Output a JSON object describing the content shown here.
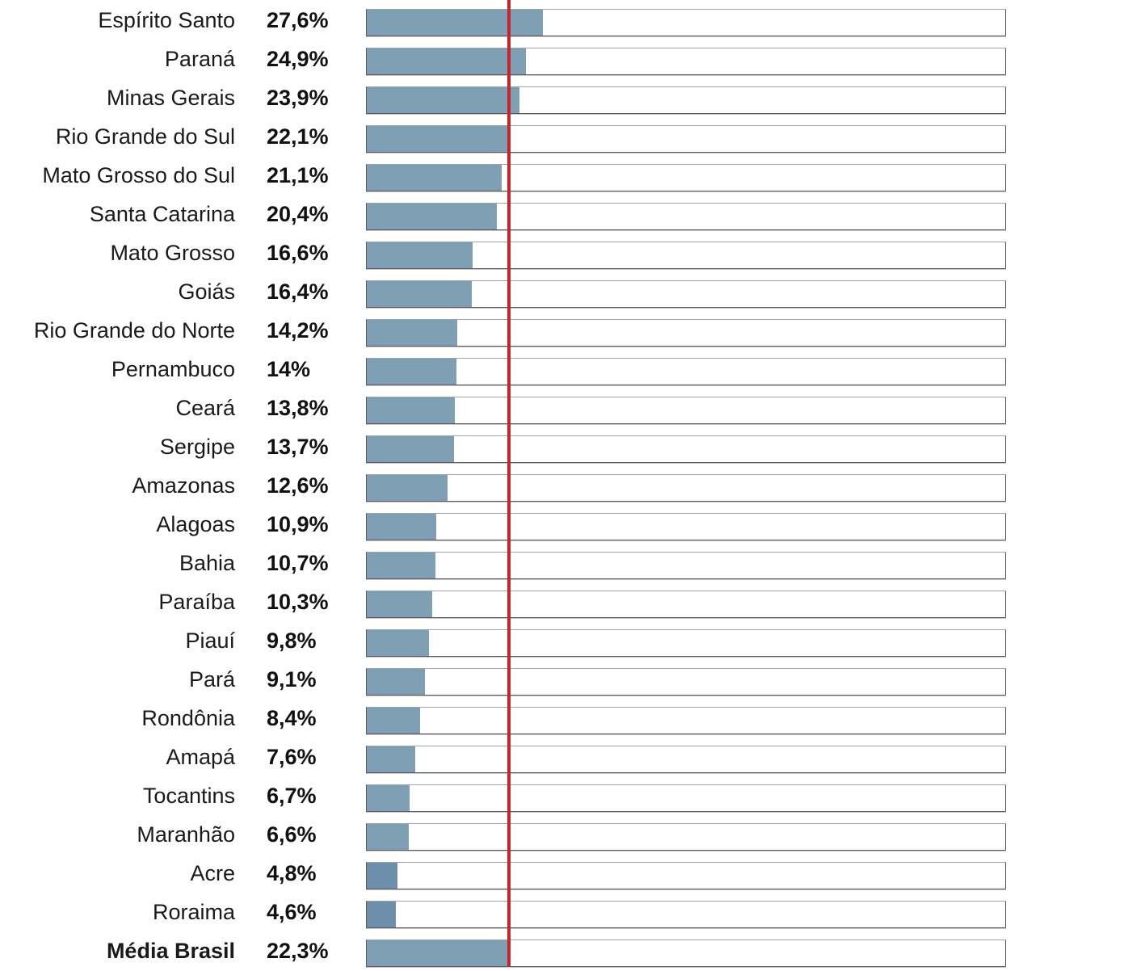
{
  "chart_data": {
    "type": "bar",
    "orientation": "horizontal",
    "xlim": [
      0,
      100
    ],
    "categories": [
      "Espírito Santo",
      "Paraná",
      "Minas Gerais",
      "Rio Grande do Sul",
      "Mato Grosso do Sul",
      "Santa Catarina",
      "Mato Grosso",
      "Goiás",
      "Rio Grande do Norte",
      "Pernambuco",
      "Ceará",
      "Sergipe",
      "Amazonas",
      "Alagoas",
      "Bahia",
      "Paraíba",
      "Piauí",
      "Pará",
      "Rondônia",
      "Amapá",
      "Tocantins",
      "Maranhão",
      "Acre",
      "Roraima",
      "Média Brasil"
    ],
    "values": [
      27.6,
      24.9,
      23.9,
      22.1,
      21.1,
      20.4,
      16.6,
      16.4,
      14.2,
      14.0,
      13.8,
      13.7,
      12.6,
      10.9,
      10.7,
      10.3,
      9.8,
      9.1,
      8.4,
      7.6,
      6.7,
      6.6,
      4.8,
      4.6,
      22.3
    ],
    "value_labels": [
      "27,6%",
      "24,9%",
      "23,9%",
      "22,1%",
      "21,1%",
      "20,4%",
      "16,6%",
      "16,4%",
      "14,2%",
      "14%",
      "13,8%",
      "13,7%",
      "12,6%",
      "10,9%",
      "10,7%",
      "10,3%",
      "9,8%",
      "9,1%",
      "8,4%",
      "7,6%",
      "6,7%",
      "6,6%",
      "4,8%",
      "4,6%",
      "22,3%"
    ],
    "reference_line": {
      "label": "Média Brasil",
      "value": 22.3
    },
    "colors": {
      "bar": "#7f9fb5",
      "bar_dark": "#6e8fab",
      "reference": "#c1272d"
    }
  }
}
